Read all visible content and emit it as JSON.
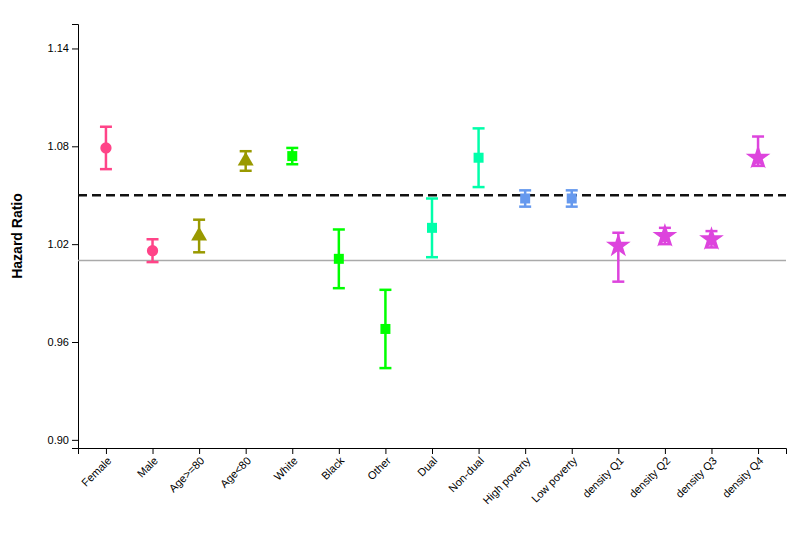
{
  "chart_data": {
    "type": "errorbar",
    "ylabel": "Hazard Ratio",
    "categories": [
      "Female",
      "Male",
      "Age>=80",
      "Age<80",
      "White",
      "Black",
      "Other",
      "Dual",
      "Non-dual",
      "High poverty",
      "Low poverty",
      "density Q1",
      "density Q2",
      "density Q3",
      "density Q4"
    ],
    "series": [
      {
        "color": "#FF4488",
        "marker": "circle",
        "values": [
          1.079,
          1.016,
          null,
          null,
          null,
          null,
          null,
          null,
          null,
          null,
          null,
          null,
          null,
          null,
          null
        ],
        "lower_err": [
          0.013,
          0.007,
          null,
          null,
          null,
          null,
          null,
          null,
          null,
          null,
          null,
          null,
          null,
          null,
          null
        ],
        "upper_err": [
          0.013,
          0.007,
          null,
          null,
          null,
          null,
          null,
          null,
          null,
          null,
          null,
          null,
          null,
          null,
          null
        ]
      },
      {
        "color": "#999900",
        "marker": "triangle",
        "values": [
          null,
          null,
          1.025,
          1.071,
          null,
          null,
          null,
          null,
          null,
          null,
          null,
          null,
          null,
          null,
          null
        ],
        "lower_err": [
          null,
          null,
          0.01,
          0.006,
          null,
          null,
          null,
          null,
          null,
          null,
          null,
          null,
          null,
          null,
          null
        ],
        "upper_err": [
          null,
          null,
          0.01,
          0.006,
          null,
          null,
          null,
          null,
          null,
          null,
          null,
          null,
          null,
          null,
          null
        ]
      },
      {
        "color": "#00FF00",
        "marker": "square",
        "values": [
          null,
          null,
          null,
          null,
          1.074,
          1.011,
          0.968,
          null,
          null,
          null,
          null,
          null,
          null,
          null,
          null
        ],
        "lower_err": [
          null,
          null,
          null,
          null,
          0.005,
          0.018,
          0.024,
          null,
          null,
          null,
          null,
          null,
          null,
          null,
          null
        ],
        "upper_err": [
          null,
          null,
          null,
          null,
          0.005,
          0.018,
          0.024,
          null,
          null,
          null,
          null,
          null,
          null,
          null,
          null
        ]
      },
      {
        "color": "#00FFAA",
        "marker": "square",
        "values": [
          null,
          null,
          null,
          null,
          null,
          null,
          null,
          1.03,
          1.073,
          null,
          null,
          null,
          null,
          null,
          null
        ],
        "lower_err": [
          null,
          null,
          null,
          null,
          null,
          null,
          null,
          0.018,
          0.018,
          null,
          null,
          null,
          null,
          null,
          null
        ],
        "upper_err": [
          null,
          null,
          null,
          null,
          null,
          null,
          null,
          0.018,
          0.018,
          null,
          null,
          null,
          null,
          null,
          null
        ]
      },
      {
        "color": "#6699EE",
        "marker": "square",
        "values": [
          null,
          null,
          null,
          null,
          null,
          null,
          null,
          null,
          null,
          1.048,
          1.048,
          null,
          null,
          null,
          null
        ],
        "lower_err": [
          null,
          null,
          null,
          null,
          null,
          null,
          null,
          null,
          null,
          0.005,
          0.005,
          null,
          null,
          null,
          null
        ],
        "upper_err": [
          null,
          null,
          null,
          null,
          null,
          null,
          null,
          null,
          null,
          0.005,
          0.005,
          null,
          null,
          null,
          null
        ]
      },
      {
        "color": "#DD44DD",
        "marker": "star",
        "values": [
          null,
          null,
          null,
          null,
          null,
          null,
          null,
          null,
          null,
          null,
          null,
          1.019,
          1.025,
          1.023,
          1.073
        ],
        "lower_err": [
          null,
          null,
          null,
          null,
          null,
          null,
          null,
          null,
          null,
          null,
          null,
          0.022,
          0.005,
          0.005,
          0.005
        ],
        "upper_err": [
          null,
          null,
          null,
          null,
          null,
          null,
          null,
          null,
          null,
          null,
          null,
          0.008,
          0.005,
          0.005,
          0.013
        ]
      }
    ],
    "reference_lines": [
      {
        "value": 1.05,
        "color": "#111111",
        "line_style": "dashed"
      },
      {
        "value": 1.01,
        "color": "#aaaaaa",
        "line_style": "solid"
      }
    ],
    "ylim": [
      0.895,
      1.155
    ],
    "yticks": [
      {
        "value": 0.9,
        "label": "0.90"
      },
      0.96,
      1.02,
      1.08,
      1.14
    ],
    "grid": false
  }
}
